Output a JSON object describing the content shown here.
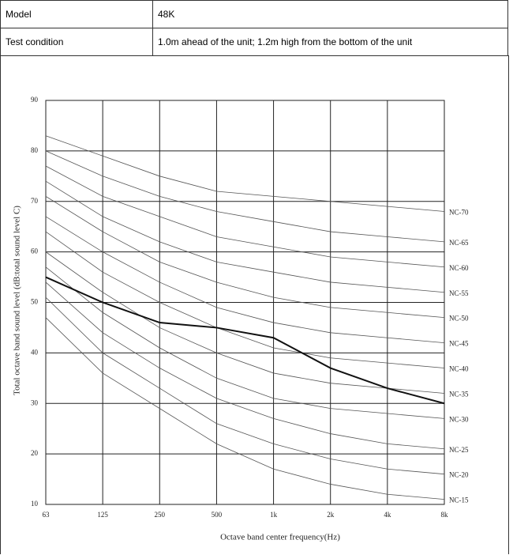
{
  "table": {
    "rows": [
      [
        "Model",
        "48K"
      ],
      [
        "Test condition",
        "1.0m ahead of the unit; 1.2m high from the bottom of the unit"
      ]
    ]
  },
  "chart_data": {
    "type": "line",
    "ylabel": "Total octave band sound level (dB:total sound level C)",
    "xlabel": "Octave band center frequency(Hz)",
    "categories": [
      "63",
      "125",
      "250",
      "500",
      "1k",
      "2k",
      "4k",
      "8k"
    ],
    "values": [
      55,
      50,
      46,
      45,
      43,
      37,
      33,
      30
    ],
    "color": "#111111",
    "ylim": [
      10,
      90
    ],
    "yticks": [
      10,
      20,
      30,
      40,
      50,
      60,
      70,
      80,
      90
    ],
    "grid": true,
    "series": [
      {
        "name": "NC-15",
        "color": "#555555",
        "values": [
          47,
          36,
          29,
          22,
          17,
          14,
          12,
          11
        ]
      },
      {
        "name": "NC-20",
        "color": "#555555",
        "values": [
          51,
          40,
          33,
          26,
          22,
          19,
          17,
          16
        ]
      },
      {
        "name": "NC-25",
        "color": "#555555",
        "values": [
          54,
          44,
          37,
          31,
          27,
          24,
          22,
          21
        ]
      },
      {
        "name": "NC-30",
        "color": "#555555",
        "values": [
          57,
          48,
          41,
          35,
          31,
          29,
          28,
          27
        ]
      },
      {
        "name": "NC-35",
        "color": "#555555",
        "values": [
          60,
          52,
          45,
          40,
          36,
          34,
          33,
          32
        ]
      },
      {
        "name": "NC-40",
        "color": "#555555",
        "values": [
          64,
          56,
          50,
          45,
          41,
          39,
          38,
          37
        ]
      },
      {
        "name": "NC-45",
        "color": "#555555",
        "values": [
          67,
          60,
          54,
          49,
          46,
          44,
          43,
          42
        ]
      },
      {
        "name": "NC-50",
        "color": "#555555",
        "values": [
          71,
          64,
          58,
          54,
          51,
          49,
          48,
          47
        ]
      },
      {
        "name": "NC-55",
        "color": "#555555",
        "values": [
          74,
          67,
          62,
          58,
          56,
          54,
          53,
          52
        ]
      },
      {
        "name": "NC-60",
        "color": "#555555",
        "values": [
          77,
          71,
          67,
          63,
          61,
          59,
          58,
          57
        ]
      },
      {
        "name": "NC-65",
        "color": "#555555",
        "values": [
          80,
          75,
          71,
          68,
          66,
          64,
          63,
          62
        ]
      },
      {
        "name": "NC-70",
        "color": "#555555",
        "values": [
          83,
          79,
          75,
          72,
          71,
          70,
          69,
          68
        ]
      }
    ]
  }
}
